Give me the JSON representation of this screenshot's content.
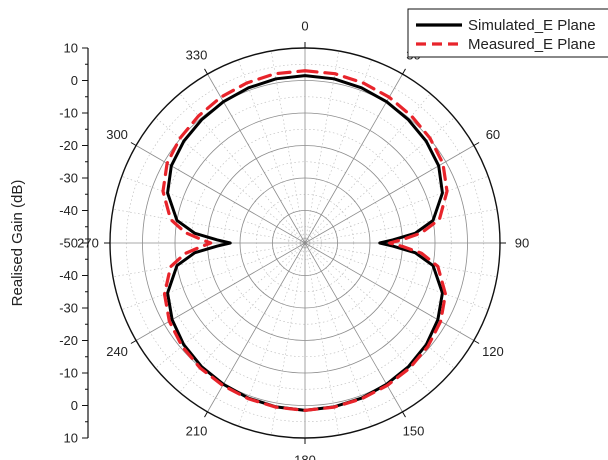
{
  "chart_data": {
    "type": "polar",
    "ylabel": "Realised Gain (dB)",
    "r_range": [
      -50,
      10
    ],
    "radial_ticks": [
      "10",
      "0",
      "-10",
      "-20",
      "-30",
      "-40",
      "-50",
      "-40",
      "-30",
      "-20",
      "-10",
      "0",
      "10"
    ],
    "angle_ticks": [
      0,
      30,
      60,
      90,
      120,
      150,
      180,
      210,
      240,
      270,
      300,
      330
    ],
    "angle_labels": [
      "0",
      "30",
      "60",
      "90",
      "120",
      "150",
      "180",
      "210",
      "240",
      "270",
      "300",
      "330"
    ],
    "grid": true,
    "legend_position": "top-right",
    "theta_deg": [
      0,
      10,
      20,
      30,
      40,
      50,
      60,
      70,
      80,
      85,
      88,
      90,
      92,
      95,
      100,
      110,
      120,
      130,
      140,
      150,
      160,
      170,
      180,
      190,
      200,
      210,
      220,
      230,
      240,
      250,
      260,
      265,
      268,
      270,
      272,
      275,
      280,
      290,
      300,
      310,
      320,
      330,
      340,
      350,
      360
    ],
    "series": [
      {
        "name": "Simulated_E Plane",
        "color": "#000000",
        "dash": "solid",
        "values": [
          1.5,
          1.3,
          0.8,
          0.2,
          -0.5,
          -1.3,
          -2.5,
          -5.0,
          -10.0,
          -16.0,
          -23.0,
          -27.0,
          -23.0,
          -16.0,
          -10.0,
          -5.0,
          -2.8,
          -1.3,
          -0.4,
          0.2,
          0.8,
          1.2,
          1.5,
          1.2,
          0.8,
          0.2,
          -0.4,
          -1.3,
          -2.8,
          -5.0,
          -10.0,
          -16.0,
          -23.0,
          -27.0,
          -23.0,
          -16.0,
          -10.0,
          -5.0,
          -2.5,
          -1.3,
          -0.5,
          0.2,
          0.8,
          1.3,
          1.5
        ]
      },
      {
        "name": "Measured_E Plane",
        "color": "#e8242b",
        "dash": "dashed",
        "values": [
          3.0,
          2.9,
          2.4,
          1.8,
          1.0,
          0.2,
          -1.0,
          -3.5,
          -8.0,
          -14.0,
          -20.0,
          -24.0,
          -20.0,
          -14.0,
          -8.5,
          -4.0,
          -1.8,
          -0.6,
          0.2,
          0.6,
          1.0,
          1.3,
          1.5,
          1.3,
          1.0,
          0.6,
          0.2,
          -0.6,
          -1.8,
          -4.0,
          -8.0,
          -13.0,
          -18.0,
          -21.0,
          -18.0,
          -13.0,
          -8.0,
          -3.5,
          -1.0,
          0.2,
          1.0,
          1.8,
          2.4,
          2.9,
          3.0
        ]
      }
    ]
  }
}
